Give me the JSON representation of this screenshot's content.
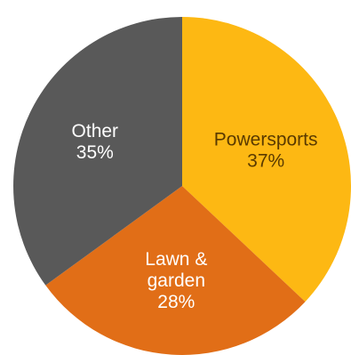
{
  "chart_data": {
    "type": "pie",
    "title": "",
    "start_angle_deg": 0,
    "direction": "clockwise",
    "slices": [
      {
        "label_lines": [
          "Powersports"
        ],
        "percent_text": "37%",
        "value": 37,
        "color": "#FDB813",
        "label_color": "#5A3A00"
      },
      {
        "label_lines": [
          "Lawn &",
          "garden"
        ],
        "percent_text": "28%",
        "value": 28,
        "color": "#E16E17",
        "label_color": "#FFFFFF"
      },
      {
        "label_lines": [
          "Other"
        ],
        "percent_text": "35%",
        "value": 35,
        "color": "#595959",
        "label_color": "#FFFFFF"
      }
    ]
  }
}
